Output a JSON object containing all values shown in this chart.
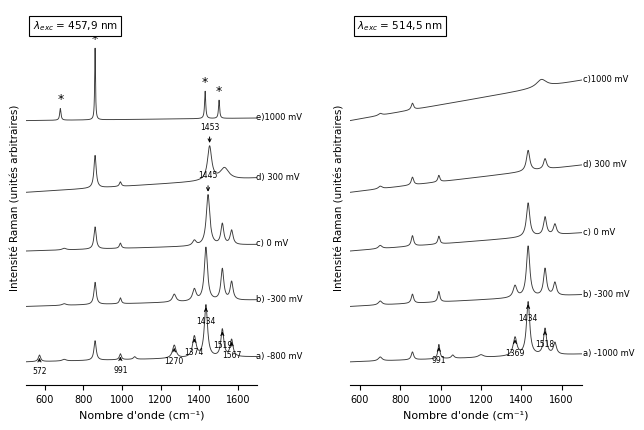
{
  "left_panel": {
    "xlabel": "Nombre d'onde (cm⁻¹)",
    "ylabel": "Intensité Raman (unités arbitraires)",
    "xlim": [
      500,
      1700
    ],
    "box_label": "$\\lambda_{exc}$ = 457,9 nm",
    "spectra_labels": [
      "a) -800 mV",
      "b) -300 mV",
      "c) 0 mV",
      "d) 300 mV",
      "e)1000 mV"
    ],
    "offsets": [
      0.0,
      0.85,
      1.7,
      2.6,
      3.7
    ]
  },
  "right_panel": {
    "xlabel": "Nombre d'onde (cm⁻¹)",
    "ylabel": "Intensité Raman (unités arbitraires)",
    "xlim": [
      550,
      1700
    ],
    "box_label": "$\\lambda_{exc}$ = 514,5 nm",
    "spectra_labels": [
      "a) -1000 mV",
      "b) -300 mV",
      "c) 0 mV",
      "d) 300 mV",
      "c)1000 mV"
    ],
    "offsets": [
      0.0,
      0.85,
      1.7,
      2.6,
      3.7
    ]
  },
  "line_color": "#3a3a3a"
}
